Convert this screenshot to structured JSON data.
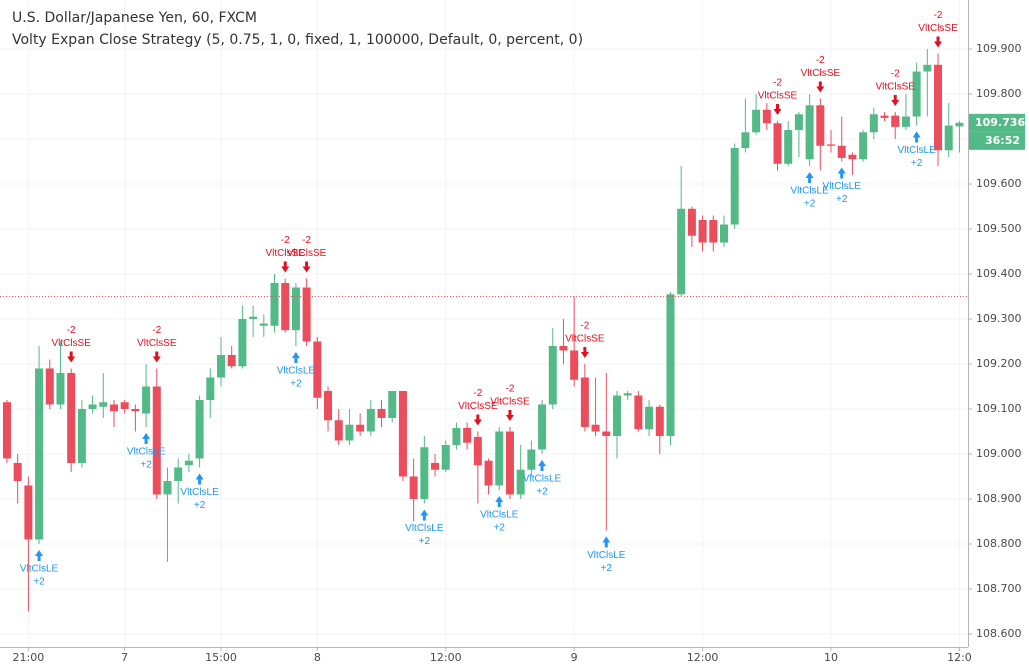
{
  "chart_data": {
    "type": "candlestick",
    "title": "U.S. Dollar/Japanese Yen, 60, FXCM",
    "subtitle": "Volty Expan Close Strategy (5, 0.75, 1, 0, fixed, 1, 100000, Default, 0, percent, 0)",
    "ohlc": {
      "open": [
        109.115,
        108.98,
        108.93,
        108.81,
        109.19,
        109.11,
        109.18,
        108.98,
        109.1,
        109.105,
        109.11,
        109.115,
        109.1,
        109.09,
        109.15,
        108.91,
        108.94,
        108.975,
        108.99,
        109.12,
        109.17,
        109.22,
        109.195,
        109.3,
        109.285,
        109.285,
        109.38,
        109.275,
        109.37,
        109.25,
        109.14,
        109.075,
        109.03,
        109.065,
        109.05,
        109.1,
        109.08,
        109.14,
        108.95,
        108.9,
        108.98,
        108.965,
        109.02,
        109.058,
        109.038,
        108.985,
        108.93,
        109.05,
        108.91,
        108.965,
        109.01,
        109.11,
        109.24,
        109.23,
        109.17,
        109.065,
        109.05,
        109.04,
        109.13,
        109.13,
        109.055,
        109.105,
        109.04,
        109.355,
        109.545,
        109.52,
        109.52,
        109.47,
        109.51,
        109.68,
        109.715,
        109.765,
        109.735,
        109.645,
        109.72,
        109.655,
        109.775,
        109.688,
        109.685,
        109.665,
        109.655,
        109.715,
        109.752,
        109.752,
        109.727,
        109.75,
        109.85,
        109.865,
        109.675,
        109.728
      ],
      "high": [
        109.12,
        109.0,
        108.95,
        109.24,
        109.21,
        109.25,
        109.19,
        109.12,
        109.13,
        109.18,
        109.12,
        109.12,
        109.11,
        109.2,
        109.19,
        108.97,
        108.99,
        109.0,
        109.13,
        109.19,
        109.26,
        109.24,
        109.33,
        109.33,
        109.31,
        109.4,
        109.39,
        109.38,
        109.39,
        109.26,
        109.15,
        109.1,
        109.1,
        109.09,
        109.12,
        109.12,
        109.14,
        109.14,
        108.99,
        109.04,
        109.0,
        109.03,
        109.07,
        109.07,
        109.05,
        108.99,
        109.06,
        109.06,
        109.02,
        109.03,
        109.12,
        109.28,
        109.3,
        109.35,
        109.2,
        109.17,
        109.18,
        109.14,
        109.14,
        109.14,
        109.12,
        109.11,
        109.36,
        109.64,
        109.55,
        109.53,
        109.53,
        109.53,
        109.69,
        109.79,
        109.8,
        109.78,
        109.74,
        109.74,
        109.76,
        109.8,
        109.79,
        109.72,
        109.75,
        109.67,
        109.72,
        109.77,
        109.76,
        109.76,
        109.8,
        109.87,
        109.9,
        109.89,
        109.78,
        109.74
      ],
      "low": [
        108.98,
        108.89,
        108.65,
        108.8,
        109.1,
        109.1,
        108.96,
        108.97,
        109.09,
        109.08,
        109.06,
        109.09,
        109.05,
        109.06,
        108.9,
        108.76,
        108.89,
        108.96,
        108.97,
        109.08,
        109.15,
        109.19,
        109.19,
        109.26,
        109.26,
        109.27,
        109.27,
        109.24,
        109.24,
        109.1,
        109.05,
        109.02,
        109.02,
        109.04,
        109.04,
        109.06,
        109.07,
        108.94,
        108.85,
        108.89,
        108.95,
        108.96,
        109.01,
        109.01,
        108.89,
        108.91,
        108.92,
        108.9,
        108.9,
        108.95,
        109.0,
        109.1,
        109.2,
        109.15,
        109.05,
        109.04,
        108.83,
        108.99,
        109.12,
        109.05,
        109.04,
        109.0,
        109.02,
        109.35,
        109.46,
        109.45,
        109.45,
        109.46,
        109.5,
        109.67,
        109.71,
        109.72,
        109.63,
        109.64,
        109.66,
        109.64,
        109.63,
        109.67,
        109.65,
        109.62,
        109.65,
        109.7,
        109.74,
        109.7,
        109.72,
        109.73,
        109.75,
        109.64,
        109.66,
        109.67
      ],
      "close": [
        108.99,
        108.94,
        108.81,
        109.19,
        109.11,
        109.18,
        108.98,
        109.1,
        109.11,
        109.115,
        109.095,
        109.1,
        109.095,
        109.15,
        108.91,
        108.94,
        108.97,
        108.985,
        109.12,
        109.17,
        109.22,
        109.195,
        109.3,
        109.305,
        109.29,
        109.38,
        109.275,
        109.37,
        109.25,
        109.125,
        109.075,
        109.03,
        109.065,
        109.05,
        109.1,
        109.08,
        109.14,
        108.95,
        108.9,
        109.015,
        108.965,
        109.02,
        109.058,
        109.025,
        108.975,
        108.93,
        109.05,
        108.91,
        108.965,
        109.01,
        109.11,
        109.24,
        109.23,
        109.165,
        109.06,
        109.05,
        109.04,
        109.13,
        109.135,
        109.055,
        109.105,
        109.04,
        109.355,
        109.545,
        109.485,
        109.47,
        109.47,
        109.51,
        109.68,
        109.715,
        109.765,
        109.735,
        109.645,
        109.72,
        109.755,
        109.775,
        109.685,
        109.685,
        109.658,
        109.655,
        109.715,
        109.755,
        109.747,
        109.727,
        109.75,
        109.85,
        109.865,
        109.675,
        109.73,
        109.736
      ]
    },
    "up_color": "#53b987",
    "down_color": "#eb4d5c",
    "xlim": [
      -0.65,
      89.8
    ],
    "xticks": [
      {
        "value": 2,
        "label": "21:00"
      },
      {
        "value": 11,
        "label": "7"
      },
      {
        "value": 20,
        "label": "15:00"
      },
      {
        "value": 29,
        "label": "8"
      },
      {
        "value": 41,
        "label": "12:00"
      },
      {
        "value": 53,
        "label": "9"
      },
      {
        "value": 65,
        "label": "12:00"
      },
      {
        "value": 77,
        "label": "10"
      },
      {
        "value": 89,
        "label": "12:0"
      }
    ],
    "ylim": [
      108.571,
      110.009
    ],
    "yticks": [
      {
        "value": 108.6,
        "label": "108.600"
      },
      {
        "value": 108.7,
        "label": "108.700"
      },
      {
        "value": 108.8,
        "label": "108.800"
      },
      {
        "value": 108.9,
        "label": "108.900"
      },
      {
        "value": 109.0,
        "label": "109.000"
      },
      {
        "value": 109.1,
        "label": "109.100"
      },
      {
        "value": 109.2,
        "label": "109.200"
      },
      {
        "value": 109.3,
        "label": "109.300"
      },
      {
        "value": 109.4,
        "label": "109.400"
      },
      {
        "value": 109.5,
        "label": "109.500"
      },
      {
        "value": 109.6,
        "label": "109.600"
      },
      {
        "value": 109.7,
        "label": "109.700"
      },
      {
        "value": 109.8,
        "label": "109.800"
      },
      {
        "value": 109.9,
        "label": "109.900"
      }
    ],
    "grid": true,
    "price_line": 109.35,
    "last_price": 109.736,
    "countdown": "36:52",
    "sell_color": "#e0101f",
    "buy_color": "#2196f3",
    "signals": [
      {
        "index": 6,
        "text": "VltClsSE",
        "qty": "-2"
      },
      {
        "index": 14,
        "text": "VltClsSE",
        "qty": "-2"
      },
      {
        "index": 26,
        "text": "VltClsSE",
        "qty": "-2"
      },
      {
        "index": 28,
        "text": "VltClsSE",
        "qty": "-2"
      },
      {
        "index": 44,
        "text": "VltClsSE",
        "qty": "-2"
      },
      {
        "index": 47,
        "text": "VltClsSE",
        "qty": "-2"
      },
      {
        "index": 54,
        "text": "VltClsSE",
        "qty": "-2"
      },
      {
        "index": 72,
        "text": "VltClsSE",
        "qty": "-2"
      },
      {
        "index": 76,
        "text": "VltClsSE",
        "qty": "-2"
      },
      {
        "index": 83,
        "text": "VltClsSE",
        "qty": "-2"
      },
      {
        "index": 87,
        "text": "VltClsSE",
        "qty": "-2"
      },
      {
        "index": 3,
        "text": "VltClsLE",
        "qty": "+2"
      },
      {
        "index": 13,
        "text": "VltClsLE",
        "qty": "+2"
      },
      {
        "index": 18,
        "text": "VltClsLE",
        "qty": "+2"
      },
      {
        "index": 27,
        "text": "VltClsLE",
        "qty": "+2"
      },
      {
        "index": 39,
        "text": "VltClsLE",
        "qty": "+2"
      },
      {
        "index": 46,
        "text": "VltClsLE",
        "qty": "+2"
      },
      {
        "index": 50,
        "text": "VltClsLE",
        "qty": "+2"
      },
      {
        "index": 56,
        "text": "VltClsLE",
        "qty": "+2"
      },
      {
        "index": 75,
        "text": "VltClsLE",
        "qty": "+2"
      },
      {
        "index": 78,
        "text": "VltClsLE",
        "qty": "+2"
      },
      {
        "index": 85,
        "text": "VltClsLE",
        "qty": "+2"
      }
    ]
  }
}
